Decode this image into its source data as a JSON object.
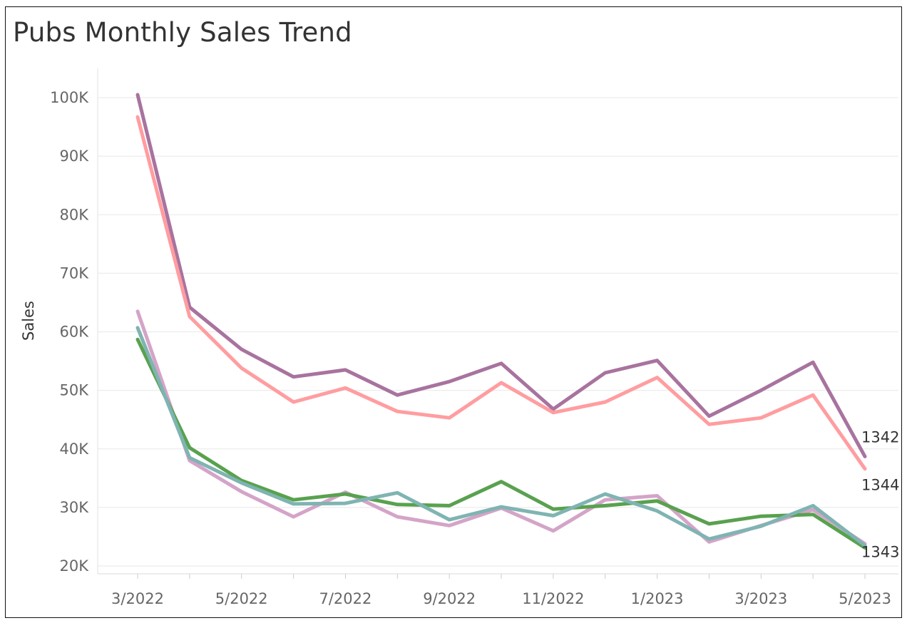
{
  "chart_data": {
    "type": "line",
    "title": "Pubs Monthly Sales Trend",
    "xlabel": "",
    "ylabel": "Sales",
    "ylim": [
      19000,
      105000
    ],
    "grid": true,
    "legend": "none",
    "x": [
      "3/2022",
      "4/2022",
      "5/2022",
      "6/2022",
      "7/2022",
      "8/2022",
      "9/2022",
      "10/2022",
      "11/2022",
      "12/2022",
      "1/2023",
      "2/2023",
      "3/2023",
      "4/2023",
      "5/2023"
    ],
    "x_tick_labels": [
      "3/2022",
      "5/2022",
      "7/2022",
      "9/2022",
      "11/2022",
      "1/2023",
      "3/2023",
      "5/2023"
    ],
    "y_ticks": [
      20000,
      30000,
      40000,
      50000,
      60000,
      70000,
      80000,
      90000,
      100000
    ],
    "y_tick_labels": [
      "20K",
      "30K",
      "40K",
      "50K",
      "60K",
      "70K",
      "80K",
      "90K",
      "100K"
    ],
    "series": [
      {
        "name": "1342",
        "color": "#a8739f",
        "labeled": true,
        "values": [
          100500,
          64200,
          57000,
          52300,
          53500,
          49200,
          51500,
          54600,
          46800,
          53000,
          55100,
          45600,
          50000,
          54800,
          38700
        ]
      },
      {
        "name": "1344",
        "color": "#ff9da0",
        "labeled": true,
        "values": [
          96700,
          62600,
          53800,
          48000,
          50400,
          46400,
          45300,
          51300,
          46200,
          48000,
          52200,
          44200,
          45300,
          49200,
          36600
        ]
      },
      {
        "name": "",
        "color": "#d4a4c8",
        "labeled": false,
        "values": [
          63500,
          38000,
          32700,
          28400,
          32600,
          28400,
          26900,
          29900,
          26000,
          31300,
          32000,
          24100,
          26900,
          29600,
          23800
        ]
      },
      {
        "name": "1343",
        "color": "#59a14f",
        "labeled": true,
        "values": [
          58700,
          40200,
          34600,
          31300,
          32300,
          30500,
          30300,
          34400,
          29700,
          30300,
          31100,
          27200,
          28500,
          28800,
          23100
        ]
      },
      {
        "name": "",
        "color": "#7fb4b2",
        "labeled": false,
        "values": [
          60700,
          38500,
          34200,
          30600,
          30700,
          32500,
          27900,
          30100,
          28600,
          32300,
          29400,
          24600,
          26800,
          30300,
          23500
        ]
      }
    ]
  }
}
